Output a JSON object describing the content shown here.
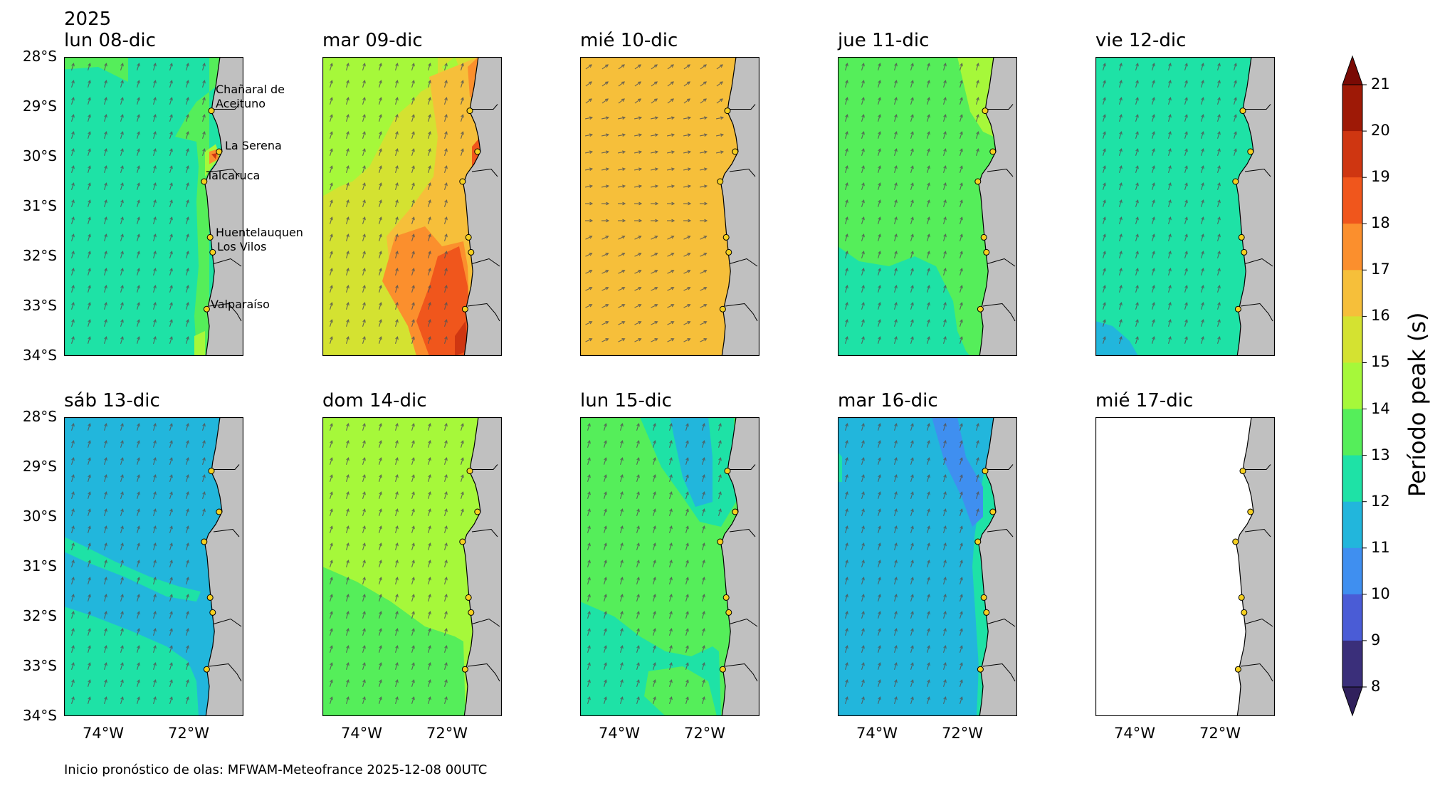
{
  "year_label": "2025",
  "footer": "Inicio pronóstico de olas: MFWAM-Meteofrance 2025-12-08 00UTC",
  "y_ticks": [
    "28°S",
    "29°S",
    "30°S",
    "31°S",
    "32°S",
    "33°S",
    "34°S"
  ],
  "x_ticks": [
    "74°W",
    "72°W"
  ],
  "colorbar": {
    "label": "Período peak (s)",
    "ticks": [
      "8",
      "9",
      "10",
      "11",
      "12",
      "13",
      "14",
      "15",
      "16",
      "17",
      "18",
      "19",
      "20",
      "21"
    ],
    "colors": [
      "#3a2f7a",
      "#4a5cd6",
      "#3f8ff0",
      "#22b6dc",
      "#1ee2a6",
      "#55ee5a",
      "#a6f83a",
      "#d4e231",
      "#f6bf3a",
      "#fb8f2d",
      "#f0561c",
      "#cf3611",
      "#9e1906"
    ],
    "under_color": "#30205c",
    "over_color": "#7a0a04"
  },
  "places": [
    {
      "name": "Chañaral de Aceituno",
      "lines": [
        "Chañaral de",
        "Aceituno"
      ]
    },
    {
      "name": "La Serena",
      "lines": [
        "La Serena"
      ]
    },
    {
      "name": "Talcaruca",
      "lines": [
        "Talcaruca"
      ]
    },
    {
      "name": "Huentelauquen",
      "lines": [
        "Huentelauquen"
      ]
    },
    {
      "name": "Los Vilos",
      "lines": [
        "Los Vilos"
      ]
    },
    {
      "name": "Valparaíso",
      "lines": [
        "Valparaíso"
      ]
    }
  ],
  "panels": [
    {
      "title": "lun 08-dic",
      "dominant_period_s": 12
    },
    {
      "title": "mar 09-dic",
      "dominant_period_s": 15
    },
    {
      "title": "mié 10-dic",
      "dominant_period_s": 16
    },
    {
      "title": "jue 11-dic",
      "dominant_period_s": 13
    },
    {
      "title": "vie 12-dic",
      "dominant_period_s": 12
    },
    {
      "title": "sáb 13-dic",
      "dominant_period_s": 11
    },
    {
      "title": "dom 14-dic",
      "dominant_period_s": 14
    },
    {
      "title": "lun 15-dic",
      "dominant_period_s": 13
    },
    {
      "title": "mar 16-dic",
      "dominant_period_s": 11
    },
    {
      "title": "mié 17-dic",
      "dominant_period_s": null
    }
  ]
}
